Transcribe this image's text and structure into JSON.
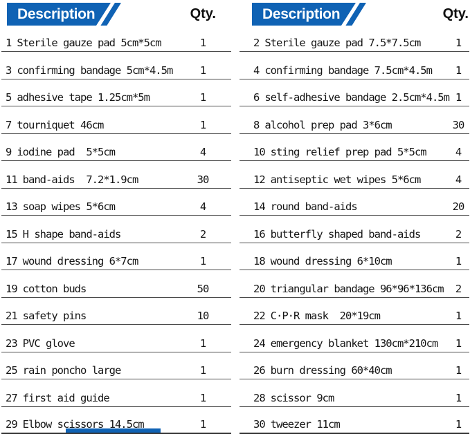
{
  "colors": {
    "accent": "#0f62b4",
    "row_line": "#4a4a4a",
    "text": "#151515"
  },
  "columns": [
    {
      "header": {
        "description_label": "Description",
        "qty_label": "Qty."
      },
      "rows": [
        {
          "num": "1",
          "desc": "Sterile gauze pad 5cm*5cm",
          "qty": "1"
        },
        {
          "num": "3",
          "desc": "confirming bandage 5cm*4.5m",
          "qty": "1"
        },
        {
          "num": "5",
          "desc": "adhesive tape 1.25cm*5m",
          "qty": "1"
        },
        {
          "num": "7",
          "desc": "tourniquet 46cm",
          "qty": "1"
        },
        {
          "num": "9",
          "desc": "iodine pad  5*5cm",
          "qty": "4"
        },
        {
          "num": "11",
          "desc": "band-aids  7.2*1.9cm",
          "qty": "30"
        },
        {
          "num": "13",
          "desc": "soap wipes 5*6cm",
          "qty": "4"
        },
        {
          "num": "15",
          "desc": "H shape band-aids",
          "qty": "2"
        },
        {
          "num": "17",
          "desc": "wound dressing 6*7cm",
          "qty": "1"
        },
        {
          "num": "19",
          "desc": "cotton buds",
          "qty": "50"
        },
        {
          "num": "21",
          "desc": "safety pins",
          "qty": "10"
        },
        {
          "num": "23",
          "desc": "PVC glove",
          "qty": "1"
        },
        {
          "num": "25",
          "desc": "rain poncho large",
          "qty": "1"
        },
        {
          "num": "27",
          "desc": "first aid guide",
          "qty": "1"
        },
        {
          "num": "29",
          "desc": "Elbow scissors 14.5cm",
          "qty": "1"
        }
      ]
    },
    {
      "header": {
        "description_label": "Description",
        "qty_label": "Qty."
      },
      "rows": [
        {
          "num": "2",
          "desc": "Sterile gauze pad 7.5*7.5cm",
          "qty": "1"
        },
        {
          "num": "4",
          "desc": "confirming bandage 7.5cm*4.5m",
          "qty": "1"
        },
        {
          "num": "6",
          "desc": "self-adhesive bandage 2.5cm*4.5m",
          "qty": "1"
        },
        {
          "num": "8",
          "desc": "alcohol prep pad 3*6cm",
          "qty": "30"
        },
        {
          "num": "10",
          "desc": "sting relief prep pad 5*5cm",
          "qty": "4"
        },
        {
          "num": "12",
          "desc": "antiseptic wet wipes 5*6cm",
          "qty": "4"
        },
        {
          "num": "14",
          "desc": "round band-aids",
          "qty": "20"
        },
        {
          "num": "16",
          "desc": "butterfly shaped band-aids",
          "qty": "2"
        },
        {
          "num": "18",
          "desc": "wound dressing 6*10cm",
          "qty": "1"
        },
        {
          "num": "20",
          "desc": "triangular bandage 96*96*136cm",
          "qty": "2"
        },
        {
          "num": "22",
          "desc": "C·P·R mask  20*19cm",
          "qty": "1"
        },
        {
          "num": "24",
          "desc": "emergency blanket 130cm*210cm",
          "qty": "1"
        },
        {
          "num": "26",
          "desc": "burn dressing 60*40cm",
          "qty": "1"
        },
        {
          "num": "28",
          "desc": "scissor 9cm",
          "qty": "1"
        },
        {
          "num": "30",
          "desc": "tweezer 11cm",
          "qty": "1"
        }
      ]
    }
  ]
}
